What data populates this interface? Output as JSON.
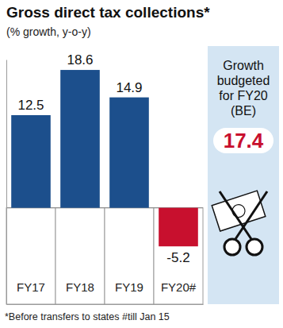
{
  "chart_data": {
    "type": "bar",
    "title": "Gross direct tax collections*",
    "subtitle": "(% growth, y-o-y)",
    "categories": [
      "FY17",
      "FY18",
      "FY19",
      "FY20#"
    ],
    "values": [
      12.5,
      18.6,
      14.9,
      -5.2
    ],
    "colors": [
      "#1c4f8c",
      "#1c4f8c",
      "#1c4f8c",
      "#c8102e"
    ],
    "ylim": [
      -13,
      20
    ],
    "yticks": [
      0
    ],
    "grid": true,
    "data_labels": true,
    "tick_labels": "x",
    "annotations": [
      {
        "text": "Growth budgeted for FY20 (BE)",
        "value": 17.4
      }
    ],
    "footnote": "*Before transfers to states #till Jan 15"
  }
}
